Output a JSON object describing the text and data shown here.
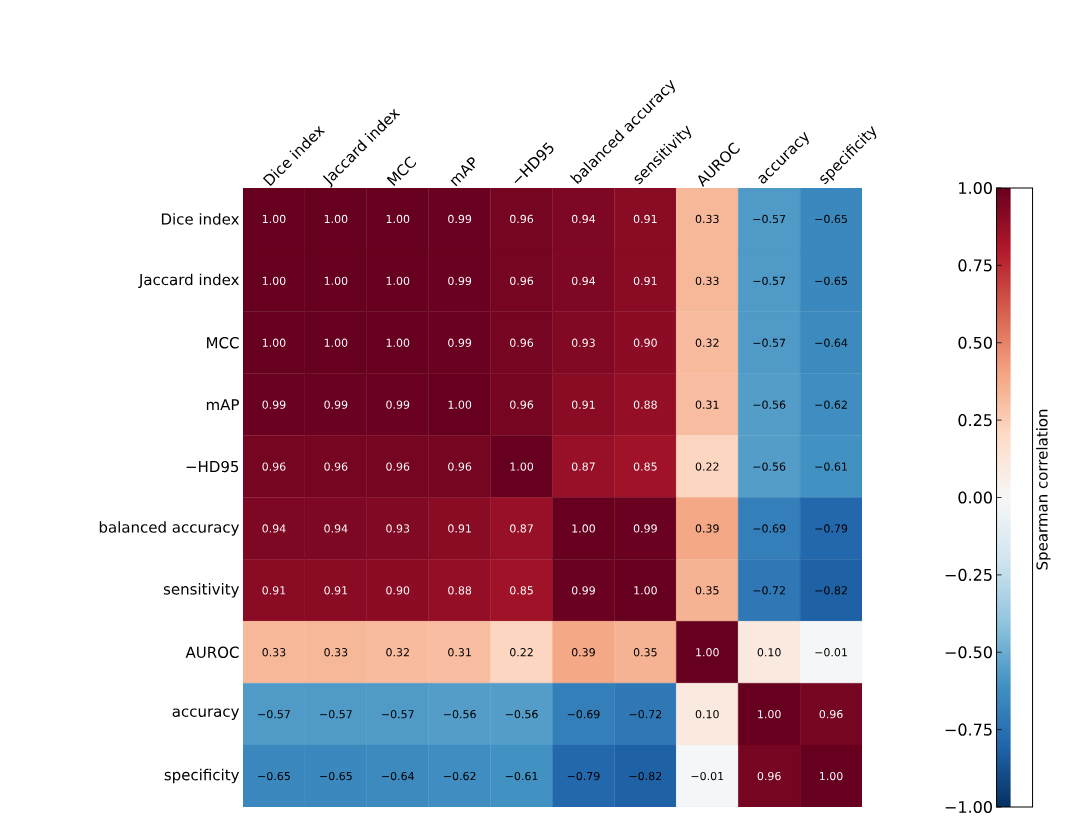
{
  "chart_data": {
    "type": "heatmap",
    "categories": [
      "Dice index",
      "Jaccard index",
      "MCC",
      "mAP",
      "−HD95",
      "balanced accuracy",
      "sensitivity",
      "AUROC",
      "accuracy",
      "specificity"
    ],
    "y_categories": [
      "Dice index",
      "Jaccard index",
      "MCC",
      "mAP",
      "−HD95",
      "balanced accuracy",
      "sensitivity",
      "AUROC",
      "accuracy",
      "specificity"
    ],
    "cells": [
      [
        1.0,
        1.0,
        1.0,
        0.99,
        0.96,
        0.94,
        0.91,
        0.33,
        -0.57,
        -0.65
      ],
      [
        1.0,
        1.0,
        1.0,
        0.99,
        0.96,
        0.94,
        0.91,
        0.33,
        -0.57,
        -0.65
      ],
      [
        1.0,
        1.0,
        1.0,
        0.99,
        0.96,
        0.93,
        0.9,
        0.32,
        -0.57,
        -0.64
      ],
      [
        0.99,
        0.99,
        0.99,
        1.0,
        0.96,
        0.91,
        0.88,
        0.31,
        -0.56,
        -0.62
      ],
      [
        0.96,
        0.96,
        0.96,
        0.96,
        1.0,
        0.87,
        0.85,
        0.22,
        -0.56,
        -0.61
      ],
      [
        0.94,
        0.94,
        0.93,
        0.91,
        0.87,
        1.0,
        0.99,
        0.39,
        -0.69,
        -0.79
      ],
      [
        0.91,
        0.91,
        0.9,
        0.88,
        0.85,
        0.99,
        1.0,
        0.35,
        -0.72,
        -0.82
      ],
      [
        0.33,
        0.33,
        0.32,
        0.31,
        0.22,
        0.39,
        0.35,
        1.0,
        0.1,
        -0.01
      ],
      [
        -0.57,
        -0.57,
        -0.57,
        -0.56,
        -0.56,
        -0.69,
        -0.72,
        0.1,
        1.0,
        0.96
      ],
      [
        -0.65,
        -0.65,
        -0.64,
        -0.62,
        -0.61,
        -0.79,
        -0.82,
        -0.01,
        0.96,
        1.0
      ]
    ],
    "cell_labels": [
      [
        "1.00",
        "1.00",
        "1.00",
        "0.99",
        "0.96",
        "0.94",
        "0.91",
        "0.33",
        "−0.57",
        "−0.65"
      ],
      [
        "1.00",
        "1.00",
        "1.00",
        "0.99",
        "0.96",
        "0.94",
        "0.91",
        "0.33",
        "−0.57",
        "−0.65"
      ],
      [
        "1.00",
        "1.00",
        "1.00",
        "0.99",
        "0.96",
        "0.93",
        "0.90",
        "0.32",
        "−0.57",
        "−0.64"
      ],
      [
        "0.99",
        "0.99",
        "0.99",
        "1.00",
        "0.96",
        "0.91",
        "0.88",
        "0.31",
        "−0.56",
        "−0.62"
      ],
      [
        "0.96",
        "0.96",
        "0.96",
        "0.96",
        "1.00",
        "0.87",
        "0.85",
        "0.22",
        "−0.56",
        "−0.61"
      ],
      [
        "0.94",
        "0.94",
        "0.93",
        "0.91",
        "0.87",
        "1.00",
        "0.99",
        "0.39",
        "−0.69",
        "−0.79"
      ],
      [
        "0.91",
        "0.91",
        "0.90",
        "0.88",
        "0.85",
        "0.99",
        "1.00",
        "0.35",
        "−0.72",
        "−0.82"
      ],
      [
        "0.33",
        "0.33",
        "0.32",
        "0.31",
        "0.22",
        "0.39",
        "0.35",
        "1.00",
        "0.10",
        "−0.01"
      ],
      [
        "−0.57",
        "−0.57",
        "−0.57",
        "−0.56",
        "−0.56",
        "−0.69",
        "−0.72",
        "0.10",
        "1.00",
        "0.96"
      ],
      [
        "−0.65",
        "−0.65",
        "−0.64",
        "−0.62",
        "−0.61",
        "−0.79",
        "−0.82",
        "−0.01",
        "0.96",
        "1.00"
      ]
    ],
    "clim": [
      -1,
      1
    ],
    "cticks": [
      {
        "value": -1,
        "label": "−1.00"
      },
      {
        "value": -0.75,
        "label": "−0.75"
      },
      {
        "value": -0.5,
        "label": "−0.50"
      },
      {
        "value": -0.25,
        "label": "−0.25"
      },
      {
        "value": 0,
        "label": "0.00"
      },
      {
        "value": 0.25,
        "label": "0.25"
      },
      {
        "value": 0.5,
        "label": "0.50"
      },
      {
        "value": 0.75,
        "label": "0.75"
      },
      {
        "value": 1,
        "label": "1.00"
      }
    ],
    "clabel": "Spearman correlation"
  }
}
